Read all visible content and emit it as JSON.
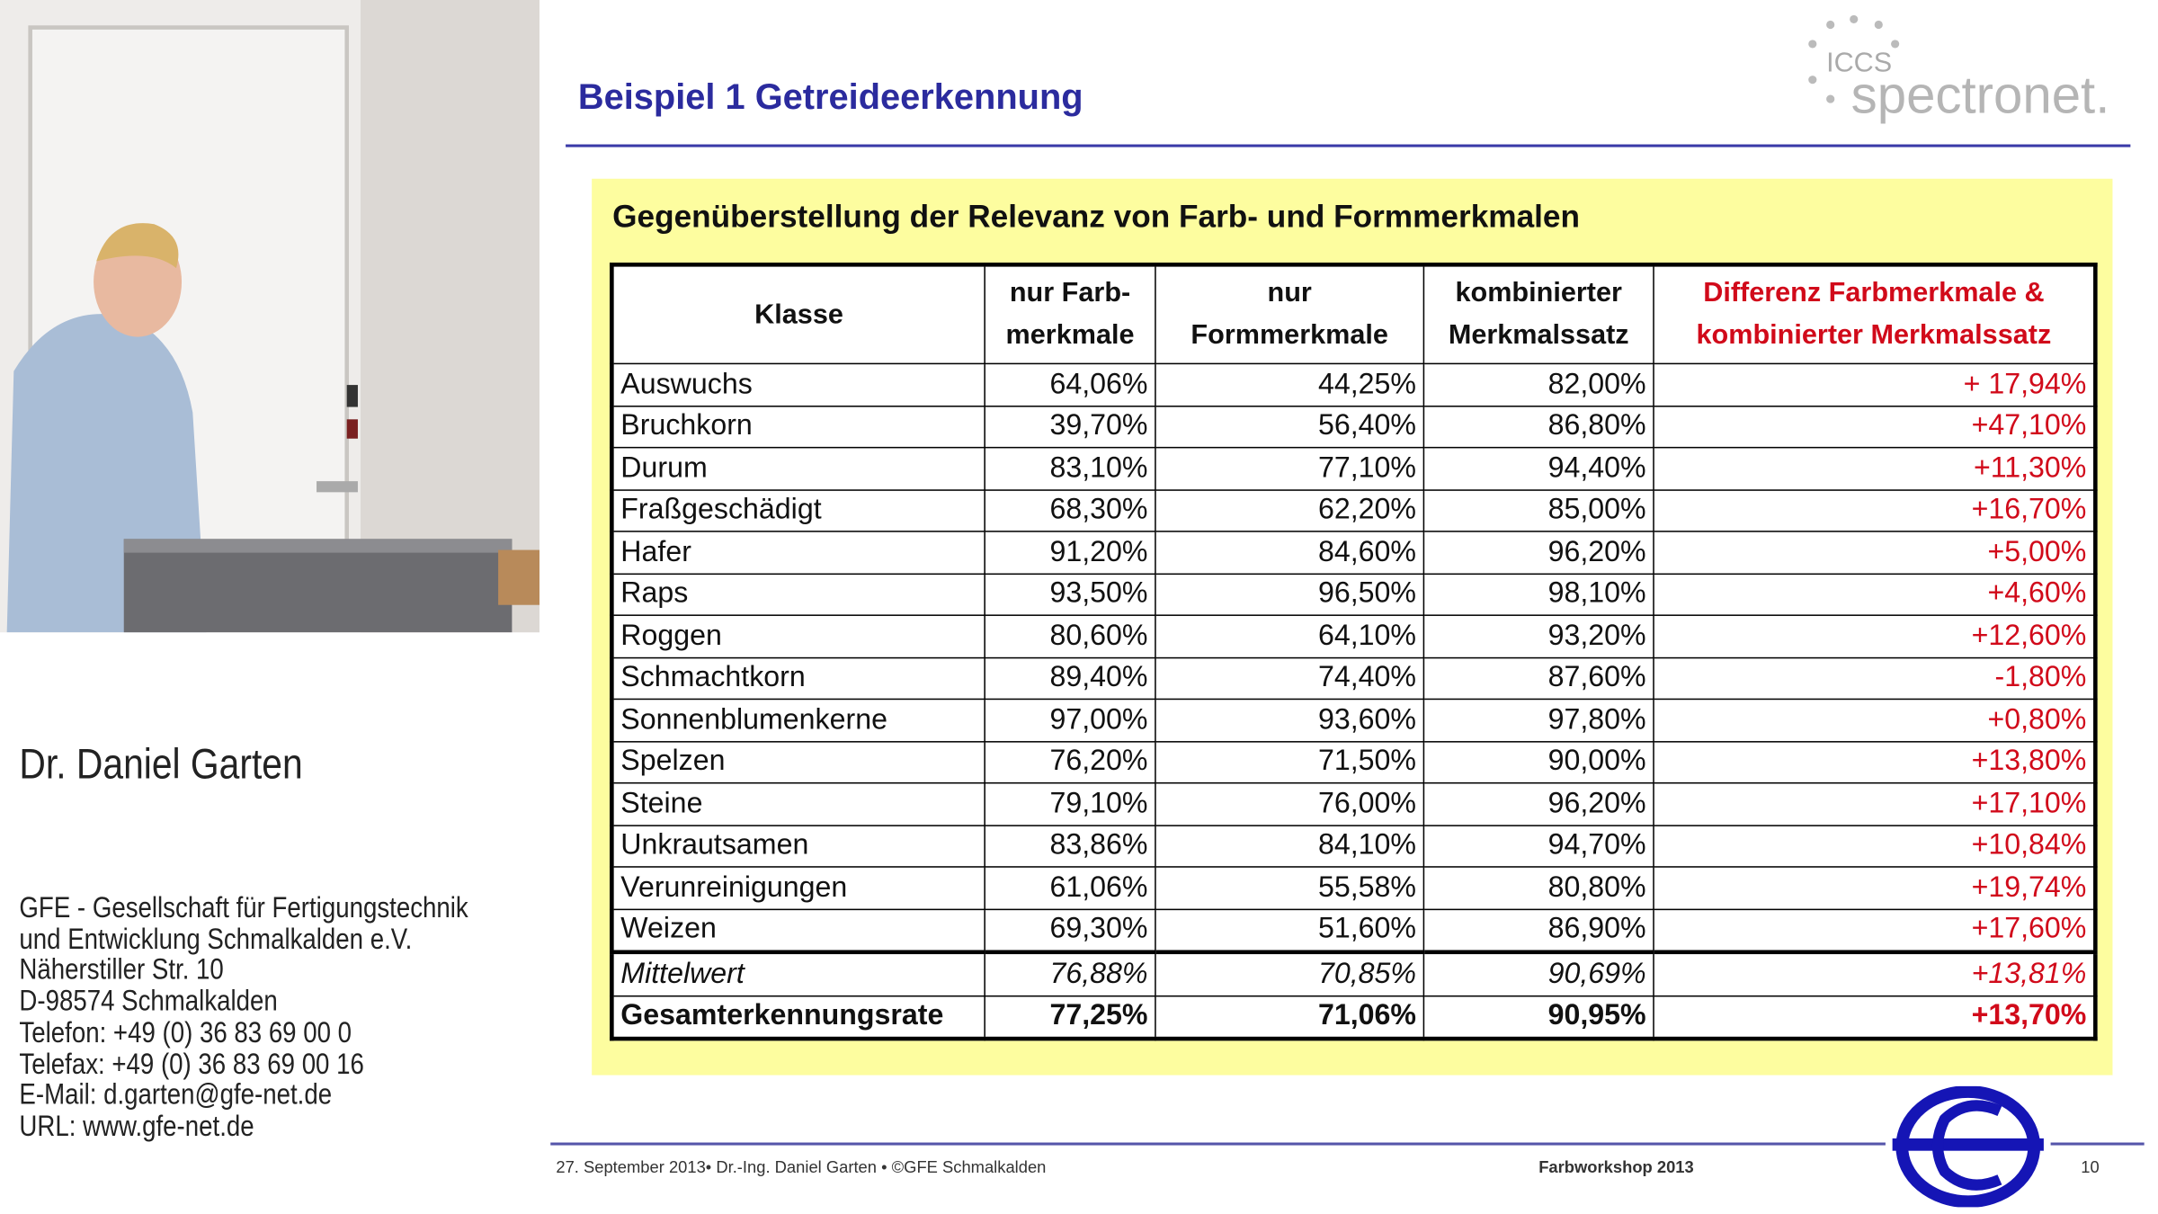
{
  "speaker": {
    "name": "Dr. Daniel Garten",
    "address": [
      "GFE - Gesellschaft für Fertigungstechnik",
      "und Entwicklung Schmalkalden e.V.",
      "Näherstiller Str. 10",
      "D-98574 Schmalkalden",
      "Telefon: +49 (0) 36 83 69 00 0",
      "Telefax: +49 (0) 36 83 69 00 16",
      "E-Mail: d.garten@gfe-net.de",
      "URL: www.gfe-net.de"
    ]
  },
  "slide": {
    "title": "Beispiel 1 Getreideerkennung",
    "logo": {
      "small": "ICCS",
      "main": "spectronet."
    },
    "table": {
      "title": "Gegenüberstellung der Relevanz von Farb- und Formmerkmalen",
      "header": [
        "Klasse",
        "nur Farb-\nmerkmale",
        "nur\nFormmerkmale",
        "kombinierter\nMerkmalssatz",
        "Differenz Farbmerkmale &\nkombinierter Merkmalssatz"
      ],
      "rows": [
        [
          "Auswuchs",
          "64,06%",
          "44,25%",
          "82,00%",
          "+ 17,94%"
        ],
        [
          "Bruchkorn",
          "39,70%",
          "56,40%",
          "86,80%",
          "+47,10%"
        ],
        [
          "Durum",
          "83,10%",
          "77,10%",
          "94,40%",
          "+11,30%"
        ],
        [
          "Fraßgeschädigt",
          "68,30%",
          "62,20%",
          "85,00%",
          "+16,70%"
        ],
        [
          "Hafer",
          "91,20%",
          "84,60%",
          "96,20%",
          "+5,00%"
        ],
        [
          "Raps",
          "93,50%",
          "96,50%",
          "98,10%",
          "+4,60%"
        ],
        [
          "Roggen",
          "80,60%",
          "64,10%",
          "93,20%",
          "+12,60%"
        ],
        [
          "Schmachtkorn",
          "89,40%",
          "74,40%",
          "87,60%",
          "-1,80%"
        ],
        [
          "Sonnenblumenkerne",
          "97,00%",
          "93,60%",
          "97,80%",
          "+0,80%"
        ],
        [
          "Spelzen",
          "76,20%",
          "71,50%",
          "90,00%",
          "+13,80%"
        ],
        [
          "Steine",
          "79,10%",
          "76,00%",
          "96,20%",
          "+17,10%"
        ],
        [
          "Unkrautsamen",
          "83,86%",
          "84,10%",
          "94,70%",
          "+10,84%"
        ],
        [
          "Verunreinigungen",
          "61,06%",
          "55,58%",
          "80,80%",
          "+19,74%"
        ],
        [
          "Weizen",
          "69,30%",
          "51,60%",
          "86,90%",
          "+17,60%"
        ],
        [
          "Mittelwert",
          "76,88%",
          "70,85%",
          "90,69%",
          "+13,81%"
        ],
        [
          "Gesamterkennungsrate",
          "77,25%",
          "71,06%",
          "90,95%",
          "+13,70%"
        ]
      ]
    },
    "footer": {
      "left": "27. September 2013• Dr.-Ing. Daniel Garten • ©GFE Schmalkalden",
      "center": "Farbworkshop 2013",
      "page": "10"
    }
  }
}
